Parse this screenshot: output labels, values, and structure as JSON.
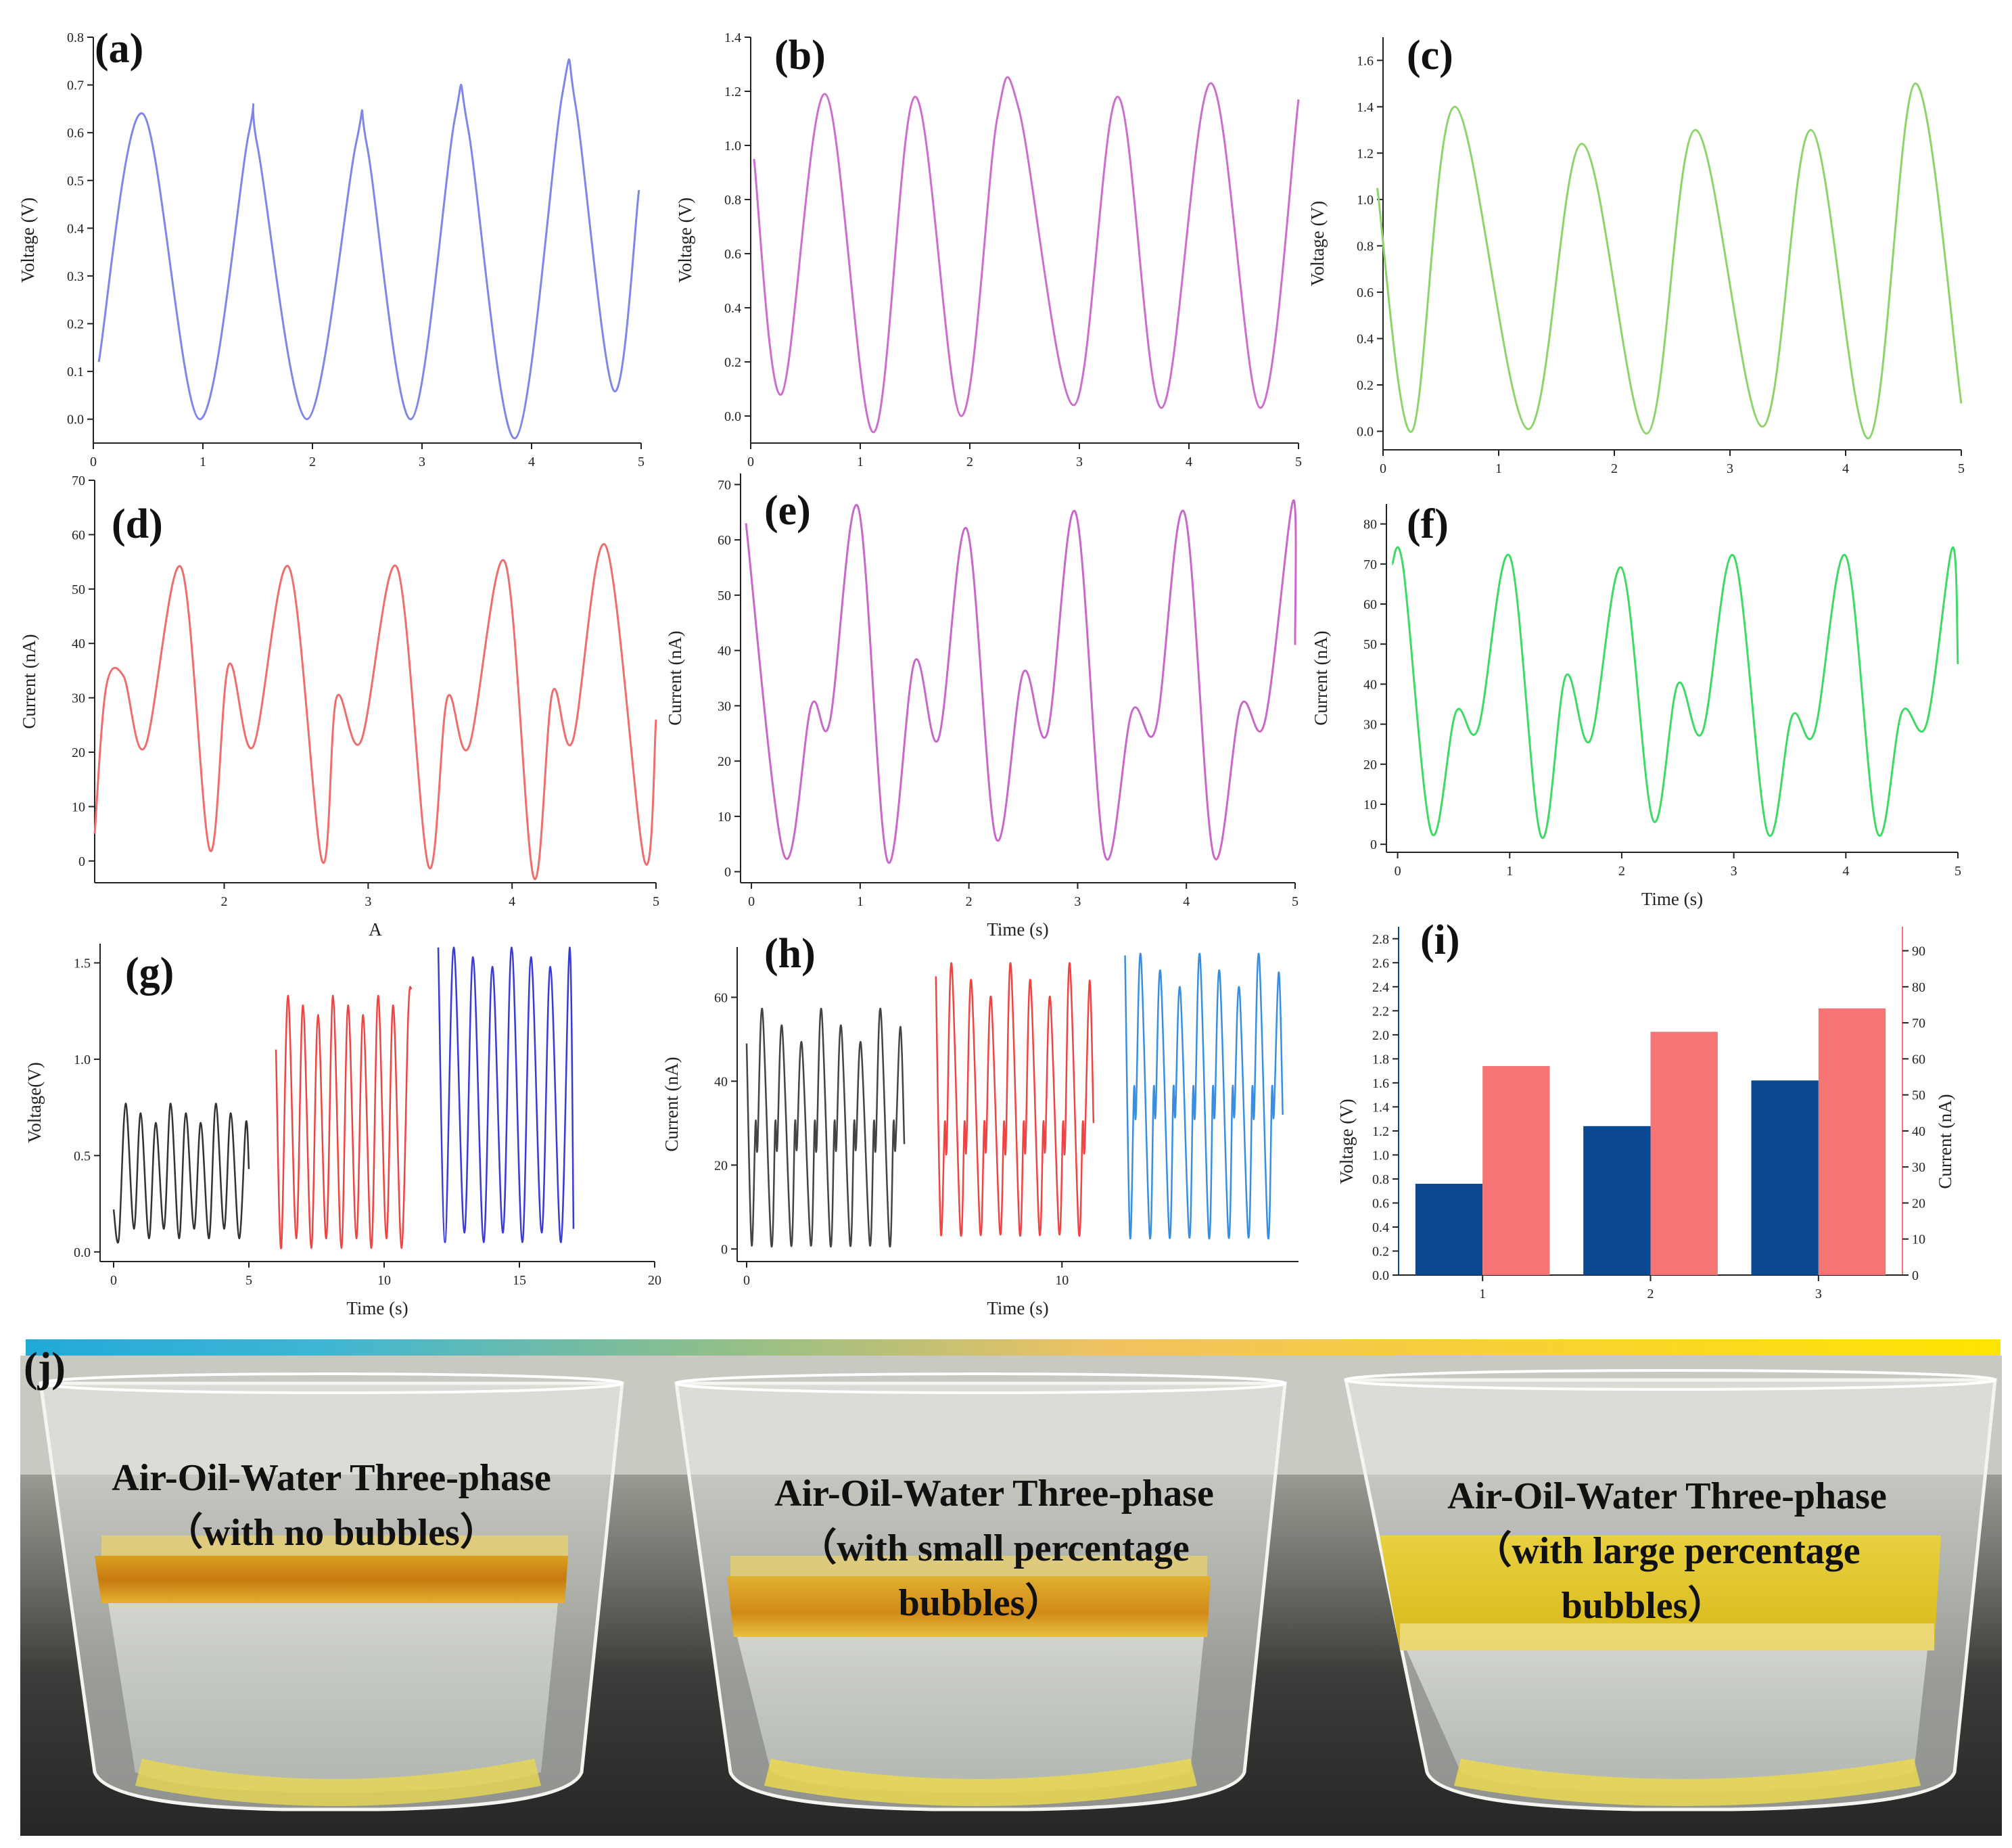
{
  "chart_data": [
    {
      "id": "a",
      "panel_label": "(a)",
      "type": "line",
      "ylabel": "Voltage (V)",
      "xlabel": "",
      "xlim": [
        0,
        5
      ],
      "ylim": [
        -0.05,
        0.8
      ],
      "xticks": [
        "0",
        "1",
        "2",
        "3",
        "4",
        "5"
      ],
      "yticks": [
        "0.0",
        "0.1",
        "0.2",
        "0.3",
        "0.4",
        "0.5",
        "0.6",
        "0.7",
        "0.8"
      ],
      "series": [
        {
          "color": "#7f86e8",
          "x": [
            0.05,
            0.45,
            0.97,
            1.42,
            1.5,
            1.95,
            2.4,
            2.5,
            2.9,
            3.3,
            3.42,
            3.85,
            4.28,
            4.4,
            4.75,
            4.98
          ],
          "y": [
            0.12,
            0.64,
            0.0,
            0.6,
            0.57,
            0.0,
            0.58,
            0.57,
            0.0,
            0.63,
            0.61,
            -0.04,
            0.68,
            0.66,
            0.06,
            0.48
          ]
        }
      ]
    },
    {
      "id": "b",
      "panel_label": "(b)",
      "type": "line",
      "ylabel": "Voltage (V)",
      "xlabel": "",
      "xlim": [
        0,
        5
      ],
      "ylim": [
        -0.1,
        1.4
      ],
      "xticks": [
        "0",
        "1",
        "2",
        "3",
        "4",
        "5"
      ],
      "yticks": [
        "0.0",
        "0.2",
        "0.4",
        "0.6",
        "0.8",
        "1.0",
        "1.2",
        "1.4"
      ],
      "series": [
        {
          "color": "#cc6fcc",
          "x": [
            0.03,
            0.28,
            0.68,
            1.12,
            1.5,
            1.92,
            2.25,
            2.45,
            2.95,
            3.35,
            3.75,
            4.2,
            4.65,
            5.0
          ],
          "y": [
            0.95,
            0.08,
            1.19,
            -0.06,
            1.18,
            0.0,
            1.1,
            1.13,
            0.04,
            1.18,
            0.03,
            1.23,
            0.03,
            1.17
          ]
        }
      ]
    },
    {
      "id": "c",
      "panel_label": "(c)",
      "type": "line",
      "ylabel": "Voltage (V)",
      "xlabel": "",
      "xlim": [
        0,
        5
      ],
      "ylim": [
        -0.08,
        1.7
      ],
      "xticks": [
        "0",
        "1",
        "2",
        "3",
        "4",
        "5"
      ],
      "yticks": [
        "0.0",
        "0.2",
        "0.4",
        "0.6",
        "0.8",
        "1.0",
        "1.2",
        "1.4",
        "1.6"
      ],
      "series": [
        {
          "color": "#8dd46a",
          "x": [
            -0.05,
            0.25,
            0.62,
            1.25,
            1.72,
            2.28,
            2.7,
            3.28,
            3.7,
            4.2,
            4.6,
            5.0
          ],
          "y": [
            1.05,
            0.0,
            1.4,
            0.01,
            1.24,
            -0.01,
            1.3,
            0.02,
            1.3,
            -0.03,
            1.5,
            0.12
          ]
        }
      ]
    },
    {
      "id": "d",
      "panel_label": "(d)",
      "type": "line",
      "ylabel": "Current (nA)",
      "xlabel": "A",
      "xlim": [
        1.1,
        5
      ],
      "ylim": [
        -4,
        70
      ],
      "xticks": [
        "2",
        "3",
        "4",
        "5"
      ],
      "yticks": [
        "0",
        "10",
        "20",
        "30",
        "40",
        "50",
        "60",
        "70"
      ],
      "series": [
        {
          "color": "#ee6d6d",
          "x": [
            1.1,
            1.18,
            1.3,
            1.45,
            1.7,
            1.9,
            2.03,
            2.2,
            2.45,
            2.68,
            2.78,
            2.95,
            3.2,
            3.42,
            3.55,
            3.7,
            3.95,
            4.15,
            4.28,
            4.42,
            4.65,
            4.92,
            5.0
          ],
          "y": [
            5,
            32,
            34,
            21,
            54,
            2,
            36,
            21,
            54,
            0,
            30,
            22,
            54,
            -1,
            30,
            21,
            55,
            -3,
            31,
            22,
            58,
            0,
            26
          ]
        }
      ]
    },
    {
      "id": "e",
      "panel_label": "(e)",
      "type": "line",
      "ylabel": "Current (nA)",
      "xlabel": "Time (s)",
      "xlim": [
        -0.1,
        5
      ],
      "ylim": [
        -2,
        72
      ],
      "xticks": [
        "0",
        "1",
        "2",
        "3",
        "4",
        "5"
      ],
      "yticks": [
        "0",
        "10",
        "20",
        "30",
        "40",
        "50",
        "60",
        "70"
      ],
      "series": [
        {
          "color": "#c868c8",
          "x": [
            -0.05,
            0.3,
            0.55,
            0.72,
            0.98,
            1.25,
            1.5,
            1.72,
            1.98,
            2.25,
            2.5,
            2.72,
            2.98,
            3.25,
            3.5,
            3.72,
            3.98,
            4.25,
            4.5,
            4.72,
            4.98,
            5.0
          ],
          "y": [
            63,
            3,
            30,
            27,
            66,
            2,
            38,
            24,
            62,
            6,
            36,
            25,
            65,
            3,
            29,
            26,
            65,
            3,
            30,
            27,
            67,
            41
          ]
        }
      ]
    },
    {
      "id": "f",
      "panel_label": "(f)",
      "type": "line",
      "ylabel": "Current (nA)",
      "xlabel": "Time (s)",
      "xlim": [
        -0.1,
        5
      ],
      "ylim": [
        -2,
        85
      ],
      "xticks": [
        "0",
        "1",
        "2",
        "3",
        "4",
        "5"
      ],
      "yticks": [
        "0",
        "10",
        "20",
        "30",
        "40",
        "50",
        "60",
        "70",
        "80"
      ],
      "series": [
        {
          "color": "#3fd966",
          "x": [
            -0.05,
            0.05,
            0.3,
            0.52,
            0.72,
            1.0,
            1.28,
            1.5,
            1.72,
            2.0,
            2.28,
            2.5,
            2.72,
            3.0,
            3.3,
            3.52,
            3.72,
            4.0,
            4.28,
            4.5,
            4.72,
            4.95,
            5.0
          ],
          "y": [
            70,
            69,
            3,
            33,
            29,
            72,
            2,
            42,
            26,
            69,
            6,
            40,
            28,
            72,
            3,
            32,
            28,
            72,
            3,
            33,
            30,
            74,
            45
          ]
        }
      ]
    },
    {
      "id": "g",
      "panel_label": "(g)",
      "type": "line",
      "ylabel": "Voltage(V)",
      "xlabel": "Time (s)",
      "xlim": [
        -0.5,
        20
      ],
      "ylim": [
        -0.05,
        1.6
      ],
      "xticks": [
        "0",
        "5",
        "10",
        "15",
        "20"
      ],
      "yticks": [
        "0.0",
        "0.5",
        "1.0",
        "1.5"
      ],
      "series": [
        {
          "color": "#333333",
          "x_start": 0,
          "x_end": 5,
          "cycles": 9,
          "min": 0.07,
          "max": 0.77,
          "start": 0.22,
          "end": 0.43
        },
        {
          "color": "#ee4444",
          "x_start": 6,
          "x_end": 11,
          "cycles": 9,
          "min": 0.02,
          "max": 1.33,
          "start": 1.05,
          "end": 1.37
        },
        {
          "color": "#3a3ad6",
          "x_start": 12,
          "x_end": 17,
          "cycles": 7,
          "min": 0.05,
          "max": 1.58,
          "start": 1.58,
          "end": 0.12
        }
      ]
    },
    {
      "id": "h",
      "panel_label": "(h)",
      "type": "line",
      "ylabel": "Current (nA)",
      "xlabel": "Time (s)",
      "xlim": [
        -0.3,
        17.5
      ],
      "ylim": [
        -3,
        72
      ],
      "xticks": [
        "0",
        "10"
      ],
      "yticks": [
        "0",
        "20",
        "40",
        "60"
      ],
      "series": [
        {
          "color": "#444444",
          "x_start": 0,
          "x_end": 5,
          "cycles": 8,
          "min": 1,
          "max": 57,
          "mid": 30,
          "start": 49,
          "end": 25
        },
        {
          "color": "#ee4444",
          "x_start": 6,
          "x_end": 11,
          "cycles": 8,
          "min": 4,
          "max": 68,
          "mid": 30,
          "start": 65,
          "end": 30
        },
        {
          "color": "#3a8ee0",
          "x_start": 12,
          "x_end": 17,
          "cycles": 8,
          "min": 3,
          "max": 70,
          "mid": 38,
          "start": 70,
          "end": 32
        }
      ]
    },
    {
      "id": "i",
      "panel_label": "(i)",
      "type": "bar",
      "ylabel": "Voltage (V)",
      "y2label": "Current (nA)",
      "categories": [
        "1",
        "2",
        "3"
      ],
      "ylim": [
        0,
        2.9
      ],
      "y2lim": [
        0,
        96.67
      ],
      "yticks": [
        "0.0",
        "0.2",
        "0.4",
        "0.6",
        "0.8",
        "1.0",
        "1.2",
        "1.4",
        "1.6",
        "1.8",
        "2.0",
        "2.2",
        "2.4",
        "2.6",
        "2.8"
      ],
      "y2ticks": [
        "0",
        "10",
        "20",
        "30",
        "40",
        "50",
        "60",
        "70",
        "80",
        "90"
      ],
      "voltage_color": "#0b4894",
      "current_color": "#f57474",
      "series": [
        {
          "name": "Voltage (V)",
          "axis": "left",
          "values": [
            0.76,
            1.24,
            1.62
          ]
        },
        {
          "name": "Current (nA)",
          "axis": "right",
          "values": [
            58,
            67.5,
            74
          ]
        }
      ]
    }
  ],
  "photo": {
    "panel_label": "(j)",
    "cups": [
      {
        "line1": "Air-Oil-Water Three-phase",
        "line2": "（with no bubbles）",
        "line3": ""
      },
      {
        "line1": "Air-Oil-Water Three-phase",
        "line2": "（with small percentage",
        "line3": "bubbles）"
      },
      {
        "line1": "Air-Oil-Water Three-phase",
        "line2": "（with large percentage",
        "line3": "bubbles）"
      }
    ]
  }
}
